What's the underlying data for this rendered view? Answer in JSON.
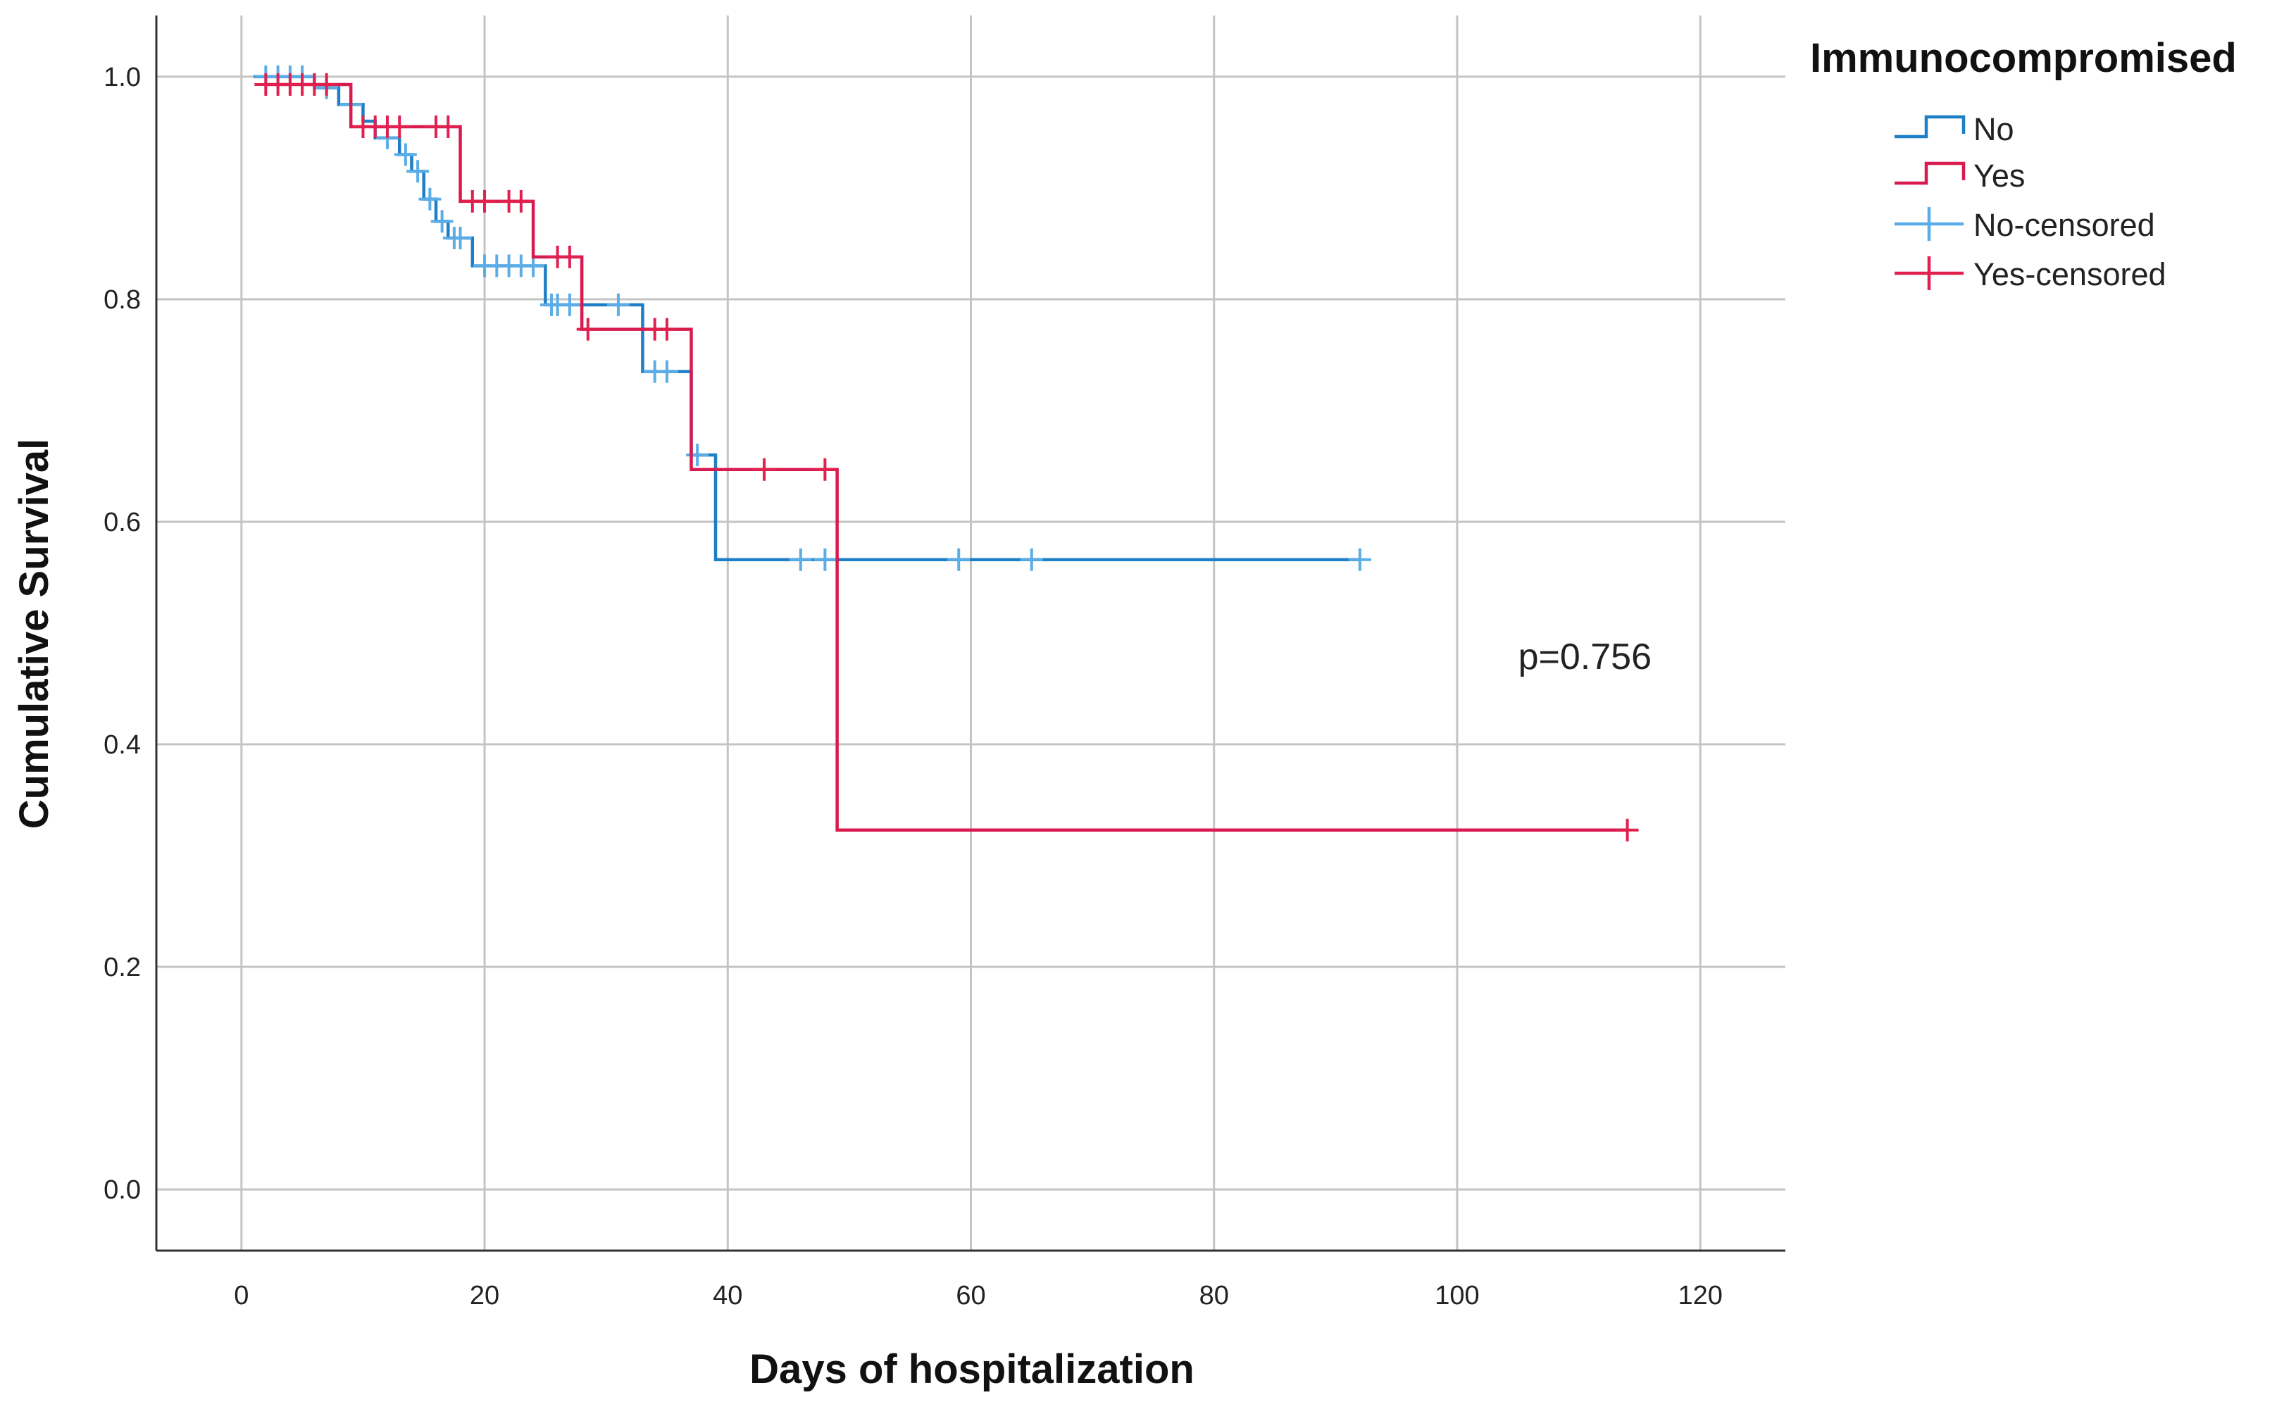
{
  "chart_data": {
    "type": "line",
    "subtype": "kaplan-meier",
    "title": "",
    "xlabel": "Days of hospitalization",
    "ylabel": "Cumulative Survival",
    "xlim": [
      -7,
      127
    ],
    "ylim": [
      -0.055,
      1.055
    ],
    "xticks": [
      0,
      20,
      40,
      60,
      80,
      100,
      120
    ],
    "yticks": [
      0.0,
      0.2,
      0.4,
      0.6,
      0.8,
      1.0
    ],
    "xtick_labels": [
      "0",
      "20",
      "40",
      "60",
      "80",
      "100",
      "120"
    ],
    "ytick_labels": [
      "0.0",
      "0.2",
      "0.4",
      "0.6",
      "0.8",
      "1.0"
    ],
    "grid": true,
    "legend": {
      "title": "Immunocompromised",
      "placement": "top-right outside",
      "entries": [
        {
          "label": "No",
          "kind": "step",
          "color": "#1f7fc6"
        },
        {
          "label": "Yes",
          "kind": "step",
          "color": "#d81a4f"
        },
        {
          "label": "No-censored",
          "kind": "censor",
          "color": "#5aade6"
        },
        {
          "label": "Yes-censored",
          "kind": "censor",
          "color": "#e0204f"
        }
      ]
    },
    "annotation": {
      "text": "p=0.756",
      "x": 110,
      "y": 0.475
    },
    "series": [
      {
        "name": "No",
        "color": "#1f7fc6",
        "censor_color": "#5aade6",
        "start": [
          1,
          1.0
        ],
        "steps": [
          [
            6,
            0.99
          ],
          [
            8,
            0.975
          ],
          [
            10,
            0.96
          ],
          [
            11,
            0.945
          ],
          [
            13,
            0.93
          ],
          [
            14,
            0.915
          ],
          [
            15,
            0.89
          ],
          [
            16,
            0.87
          ],
          [
            17,
            0.855
          ],
          [
            19,
            0.83
          ],
          [
            25,
            0.795
          ],
          [
            33,
            0.735
          ],
          [
            37,
            0.66
          ],
          [
            39,
            0.566
          ]
        ],
        "end_x": 92,
        "censored": [
          [
            2,
            1.0
          ],
          [
            3,
            1.0
          ],
          [
            4,
            1.0
          ],
          [
            5,
            1.0
          ],
          [
            7,
            0.99
          ],
          [
            9,
            0.975
          ],
          [
            12,
            0.945
          ],
          [
            13.5,
            0.93
          ],
          [
            14.5,
            0.915
          ],
          [
            15.5,
            0.89
          ],
          [
            16.5,
            0.87
          ],
          [
            17.5,
            0.855
          ],
          [
            18,
            0.855
          ],
          [
            20,
            0.83
          ],
          [
            21,
            0.83
          ],
          [
            22,
            0.83
          ],
          [
            23,
            0.83
          ],
          [
            24,
            0.83
          ],
          [
            25.5,
            0.795
          ],
          [
            26,
            0.795
          ],
          [
            27,
            0.795
          ],
          [
            31,
            0.795
          ],
          [
            34,
            0.735
          ],
          [
            35,
            0.735
          ],
          [
            37.5,
            0.66
          ],
          [
            46,
            0.566
          ],
          [
            48,
            0.566
          ],
          [
            59,
            0.566
          ],
          [
            65,
            0.566
          ],
          [
            92,
            0.566
          ]
        ]
      },
      {
        "name": "Yes",
        "color": "#d81a4f",
        "censor_color": "#e0204f",
        "start": [
          2,
          0.993
        ],
        "steps": [
          [
            9,
            0.955
          ],
          [
            18,
            0.888
          ],
          [
            24,
            0.838
          ],
          [
            28,
            0.773
          ],
          [
            37,
            0.647
          ],
          [
            49,
            0.323
          ]
        ],
        "end_x": 114,
        "censored": [
          [
            2,
            0.993
          ],
          [
            3,
            0.993
          ],
          [
            4,
            0.993
          ],
          [
            5,
            0.993
          ],
          [
            6,
            0.993
          ],
          [
            7,
            0.993
          ],
          [
            10,
            0.955
          ],
          [
            11,
            0.955
          ],
          [
            12,
            0.955
          ],
          [
            13,
            0.955
          ],
          [
            16,
            0.955
          ],
          [
            17,
            0.955
          ],
          [
            19,
            0.888
          ],
          [
            20,
            0.888
          ],
          [
            22,
            0.888
          ],
          [
            23,
            0.888
          ],
          [
            26,
            0.838
          ],
          [
            27,
            0.838
          ],
          [
            28.5,
            0.773
          ],
          [
            34,
            0.773
          ],
          [
            35,
            0.773
          ],
          [
            43,
            0.647
          ],
          [
            48,
            0.647
          ],
          [
            114,
            0.323
          ]
        ]
      }
    ]
  }
}
